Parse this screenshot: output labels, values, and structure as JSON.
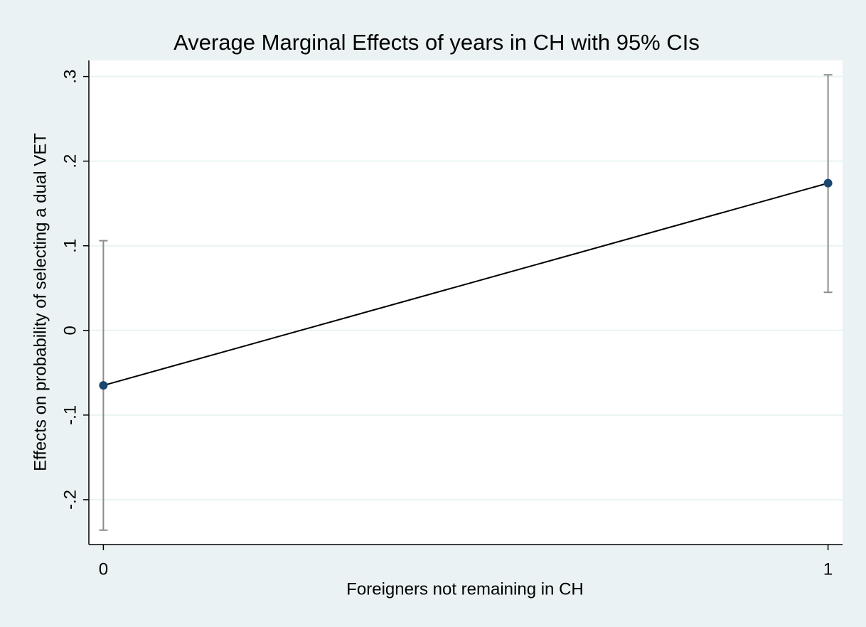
{
  "chart_data": {
    "type": "line",
    "title": "Average Marginal Effects of years in CH with 95% CIs",
    "xlabel": "Foreigners not remaining in CH",
    "ylabel": "Effects on probability of selecting a dual VET",
    "x": [
      0,
      1
    ],
    "series": [
      {
        "color": "#1a476f",
        "line_color": "#000000",
        "ci_color": "#8c8c8c",
        "values": [
          -0.065,
          0.174
        ],
        "ci_lower": [
          -0.236,
          0.045
        ],
        "ci_upper": [
          0.106,
          0.302
        ]
      }
    ],
    "xlim": [
      -0.02,
      1.02
    ],
    "xticks": [
      0,
      1
    ],
    "ylim": [
      -0.253,
      0.319
    ],
    "yticks": [
      {
        "value": -0.2,
        "label": "-.2"
      },
      {
        "value": -0.1,
        "label": "-.1"
      },
      0,
      {
        "value": 0.1,
        "label": ".1"
      },
      {
        "value": 0.2,
        "label": ".2"
      },
      {
        "value": 0.3,
        "label": ".3"
      }
    ],
    "grid": true
  }
}
